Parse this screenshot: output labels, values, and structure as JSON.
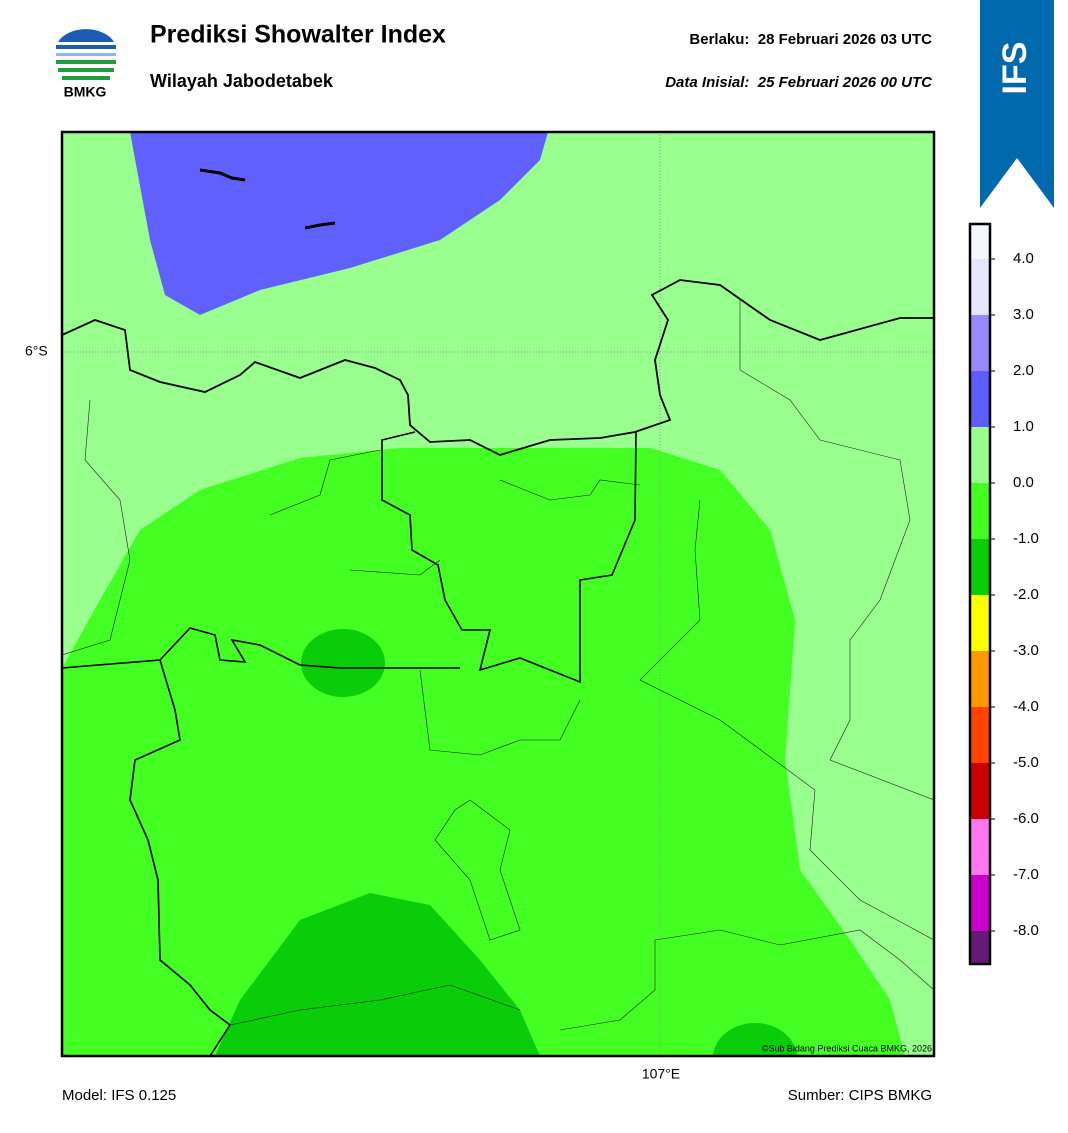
{
  "header": {
    "logo_text": "BMKG",
    "title": "Prediksi Showalter Index",
    "subtitle": "Wilayah Jabodetabek",
    "valid": "Berlaku:  28 Februari 2026 03 UTC",
    "init": "Data Inisial:  25 Februari 2026 00 UTC",
    "badge": "IFS"
  },
  "map": {
    "lat_label": "6°S",
    "lon_label": "107°E",
    "credit": "©Sub Bidang Prediksi Cuaca BMKG, 2026"
  },
  "colorbar": {
    "labels": [
      "4.0",
      "3.0",
      "2.0",
      "1.0",
      "0.0",
      "-1.0",
      "-2.0",
      "-3.0",
      "-4.0",
      "-5.0",
      "-6.0",
      "-7.0",
      "-8.0"
    ],
    "colors": [
      "#f6f6ff",
      "#e6e6ff",
      "#9a88ff",
      "#5c5cff",
      "#99ff8f",
      "#44ff22",
      "#0acd0a",
      "#ffff00",
      "#ff9900",
      "#ff4400",
      "#cc0000",
      "#ff77ee",
      "#cc00cc",
      "#661a77"
    ]
  },
  "footer": {
    "model": "Model: IFS 0.125",
    "source": "Sumber: CIPS BMKG"
  }
}
